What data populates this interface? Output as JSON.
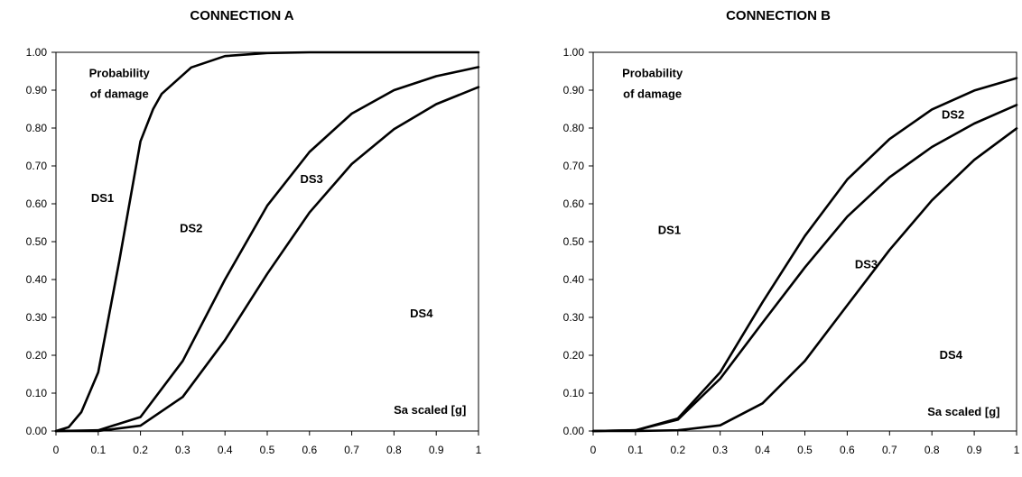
{
  "chart_data": [
    {
      "type": "line",
      "title": "CONNECTION A",
      "xlabel": "",
      "ylabel": "",
      "xlim": [
        0,
        1
      ],
      "ylim": [
        0,
        1
      ],
      "x_ticks": [
        "0",
        "0.1",
        "0.2",
        "0.3",
        "0.4",
        "0.5",
        "0.6",
        "0.7",
        "0.8",
        "0.9",
        "1"
      ],
      "y_ticks": [
        "0.00",
        "0.10",
        "0.20",
        "0.30",
        "0.40",
        "0.50",
        "0.60",
        "0.70",
        "0.80",
        "0.90",
        "1.00"
      ],
      "grid": false,
      "legend": "none",
      "series": [
        {
          "x": [
            0,
            0.03,
            0.06,
            0.1,
            0.15,
            0.2,
            0.23,
            0.25,
            0.32,
            0.4,
            0.5,
            0.6,
            0.7,
            0.8,
            0.9,
            1.0
          ],
          "y": [
            0,
            0.01,
            0.05,
            0.155,
            0.45,
            0.765,
            0.85,
            0.89,
            0.96,
            0.99,
            0.998,
            1.0,
            1.0,
            1.0,
            1.0,
            1.0
          ]
        },
        {
          "x": [
            0,
            0.1,
            0.2,
            0.3,
            0.4,
            0.5,
            0.6,
            0.7,
            0.8,
            0.9,
            1.0
          ],
          "y": [
            0,
            0.002,
            0.037,
            0.185,
            0.4,
            0.595,
            0.737,
            0.838,
            0.9,
            0.937,
            0.961
          ]
        },
        {
          "x": [
            0,
            0.1,
            0.2,
            0.3,
            0.4,
            0.5,
            0.6,
            0.7,
            0.8,
            0.9,
            1.0
          ],
          "y": [
            0,
            0,
            0.014,
            0.09,
            0.24,
            0.415,
            0.577,
            0.705,
            0.797,
            0.863,
            0.908
          ]
        }
      ],
      "annotations": [
        {
          "text": "Probability",
          "x": 0.15,
          "y": 0.935
        },
        {
          "text": "of damage",
          "x": 0.15,
          "y": 0.88
        },
        {
          "text": "DS1",
          "x": 0.11,
          "y": 0.605
        },
        {
          "text": "DS2",
          "x": 0.32,
          "y": 0.525
        },
        {
          "text": "DS3",
          "x": 0.605,
          "y": 0.655
        },
        {
          "text": "DS4",
          "x": 0.865,
          "y": 0.3
        },
        {
          "text": "Sa scaled [g]",
          "x": 0.885,
          "y": 0.045
        }
      ]
    },
    {
      "type": "line",
      "title": "CONNECTION B",
      "xlabel": "",
      "ylabel": "",
      "xlim": [
        0,
        1
      ],
      "ylim": [
        0,
        1
      ],
      "x_ticks": [
        "0",
        "0.1",
        "0.2",
        "0.3",
        "0.4",
        "0.5",
        "0.6",
        "0.7",
        "0.8",
        "0.9",
        "1"
      ],
      "y_ticks": [
        "0.00",
        "0.10",
        "0.20",
        "0.30",
        "0.40",
        "0.50",
        "0.60",
        "0.70",
        "0.80",
        "0.90",
        "1.00"
      ],
      "grid": false,
      "legend": "none",
      "series": [
        {
          "x": [
            0,
            0.1,
            0.2,
            0.3,
            0.4,
            0.5,
            0.6,
            0.7,
            0.8,
            0.9,
            1.0
          ],
          "y": [
            0,
            0.002,
            0.033,
            0.155,
            0.34,
            0.515,
            0.664,
            0.771,
            0.849,
            0.899,
            0.932
          ]
        },
        {
          "x": [
            0,
            0.1,
            0.2,
            0.3,
            0.4,
            0.5,
            0.6,
            0.7,
            0.8,
            0.9,
            1.0
          ],
          "y": [
            0,
            0.002,
            0.03,
            0.138,
            0.286,
            0.432,
            0.566,
            0.67,
            0.75,
            0.812,
            0.861
          ]
        },
        {
          "x": [
            0,
            0.1,
            0.2,
            0.3,
            0.4,
            0.5,
            0.6,
            0.7,
            0.8,
            0.9,
            1.0
          ],
          "y": [
            0,
            0,
            0.002,
            0.015,
            0.073,
            0.185,
            0.332,
            0.478,
            0.609,
            0.716,
            0.799
          ]
        }
      ],
      "annotations": [
        {
          "text": "Probability",
          "x": 0.14,
          "y": 0.935
        },
        {
          "text": "of damage",
          "x": 0.14,
          "y": 0.88
        },
        {
          "text": "DS1",
          "x": 0.18,
          "y": 0.52
        },
        {
          "text": "DS2",
          "x": 0.85,
          "y": 0.825
        },
        {
          "text": "DS3",
          "x": 0.645,
          "y": 0.43
        },
        {
          "text": "DS4",
          "x": 0.845,
          "y": 0.19
        },
        {
          "text": "Sa scaled [g]",
          "x": 0.875,
          "y": 0.04
        }
      ]
    }
  ]
}
